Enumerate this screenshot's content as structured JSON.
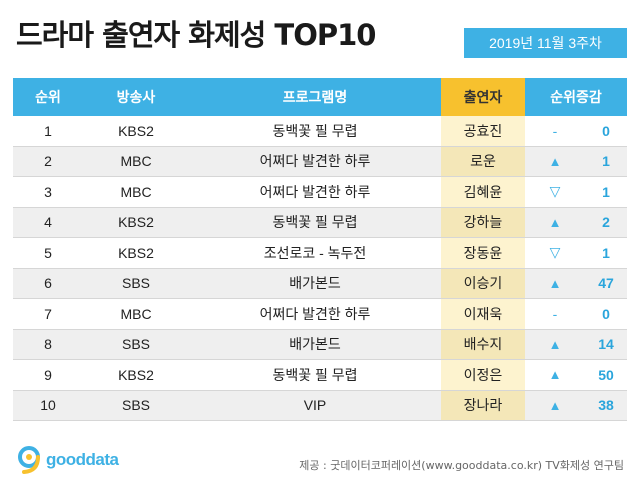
{
  "title": "드라마 출연자 화제성 TOP10",
  "date": "2019년 11월 3주차",
  "columns": {
    "rank": "순위",
    "broadcaster": "방송사",
    "program": "프로그램명",
    "actor": "출연자",
    "change": "순위증감"
  },
  "rows": [
    {
      "rank": "1",
      "broadcaster": "KBS2",
      "program": "동백꽃 필 무렵",
      "actor": "공효진",
      "change_dir": "same",
      "change_symbol": "-",
      "change_value": "0"
    },
    {
      "rank": "2",
      "broadcaster": "MBC",
      "program": "어쩌다 발견한 하루",
      "actor": "로운",
      "change_dir": "up",
      "change_symbol": "▲",
      "change_value": "1"
    },
    {
      "rank": "3",
      "broadcaster": "MBC",
      "program": "어쩌다 발견한 하루",
      "actor": "김혜윤",
      "change_dir": "down",
      "change_symbol": "▽",
      "change_value": "1"
    },
    {
      "rank": "4",
      "broadcaster": "KBS2",
      "program": "동백꽃 필 무렵",
      "actor": "강하늘",
      "change_dir": "up",
      "change_symbol": "▲",
      "change_value": "2"
    },
    {
      "rank": "5",
      "broadcaster": "KBS2",
      "program": "조선로코 - 녹두전",
      "actor": "장동윤",
      "change_dir": "down",
      "change_symbol": "▽",
      "change_value": "1"
    },
    {
      "rank": "6",
      "broadcaster": "SBS",
      "program": "배가본드",
      "actor": "이승기",
      "change_dir": "up",
      "change_symbol": "▲",
      "change_value": "47"
    },
    {
      "rank": "7",
      "broadcaster": "MBC",
      "program": "어쩌다 발견한 하루",
      "actor": "이재욱",
      "change_dir": "same",
      "change_symbol": "-",
      "change_value": "0"
    },
    {
      "rank": "8",
      "broadcaster": "SBS",
      "program": "배가본드",
      "actor": "배수지",
      "change_dir": "up",
      "change_symbol": "▲",
      "change_value": "14"
    },
    {
      "rank": "9",
      "broadcaster": "KBS2",
      "program": "동백꽃 필 무렵",
      "actor": "이정은",
      "change_dir": "up",
      "change_symbol": "▲",
      "change_value": "50"
    },
    {
      "rank": "10",
      "broadcaster": "SBS",
      "program": "VIP",
      "actor": "장나라",
      "change_dir": "up",
      "change_symbol": "▲",
      "change_value": "38"
    }
  ],
  "logo": {
    "text": "gooddata",
    "icon": "gooddata-logo-icon"
  },
  "source": "제공 : 굿데이터코퍼레이션(www.gooddata.co.kr) TV화제성 연구팀",
  "colors": {
    "header_blue": "#3eb1e4",
    "header_yellow": "#f7c12e",
    "actor_bg": "#fdf3cf"
  }
}
